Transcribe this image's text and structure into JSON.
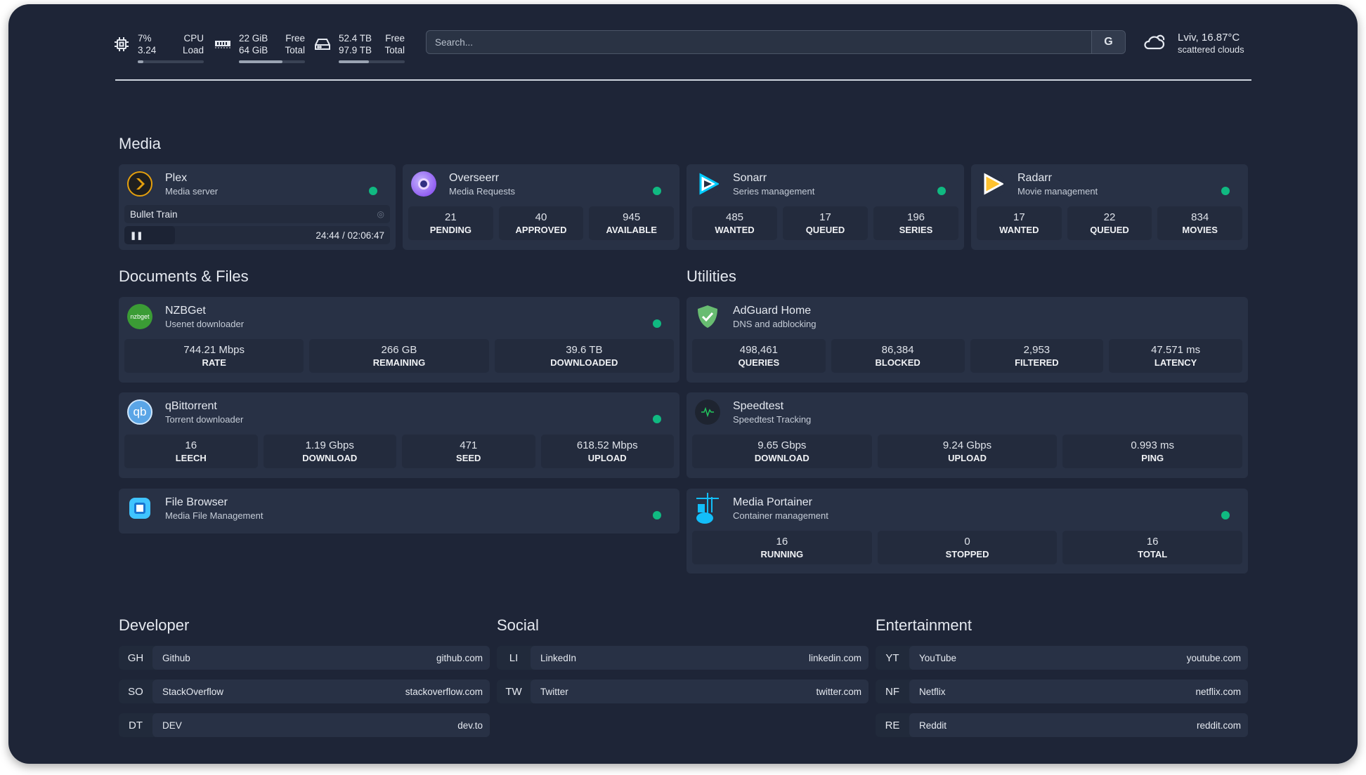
{
  "resources": {
    "cpu": {
      "icon": "cpu-icon",
      "value1": "7%",
      "label1": "CPU",
      "value2": "3.24",
      "label2": "Load",
      "usage_percent": 7
    },
    "memory": {
      "icon": "memory-icon",
      "value1": "22 GiB",
      "label1": "Free",
      "value2": "64 GiB",
      "label2": "Total",
      "usage_percent": 66
    },
    "disk": {
      "icon": "disk-icon",
      "value1": "52.4 TB",
      "label1": "Free",
      "value2": "97.9 TB",
      "label2": "Total",
      "usage_percent": 46
    }
  },
  "search": {
    "placeholder": "Search...",
    "provider_button": "G"
  },
  "weather": {
    "icon": "cloud-icon",
    "location_temp": "Lviv, 16.87°C",
    "condition": "scattered clouds"
  },
  "status_color": "#10b981",
  "sections": {
    "media": "Media",
    "documents": "Documents & Files",
    "utilities": "Utilities",
    "developer": "Developer",
    "social": "Social",
    "entertainment": "Entertainment"
  },
  "media": {
    "plex": {
      "name": "Plex",
      "desc": "Media server",
      "now_playing": "Bullet Train",
      "time": "24:44 / 02:06:47",
      "progress_percent": 19
    },
    "overseerr": {
      "name": "Overseerr",
      "desc": "Media Requests",
      "stats": [
        {
          "v": "21",
          "l": "PENDING"
        },
        {
          "v": "40",
          "l": "APPROVED"
        },
        {
          "v": "945",
          "l": "AVAILABLE"
        }
      ]
    },
    "sonarr": {
      "name": "Sonarr",
      "desc": "Series management",
      "stats": [
        {
          "v": "485",
          "l": "WANTED"
        },
        {
          "v": "17",
          "l": "QUEUED"
        },
        {
          "v": "196",
          "l": "SERIES"
        }
      ]
    },
    "radarr": {
      "name": "Radarr",
      "desc": "Movie management",
      "stats": [
        {
          "v": "17",
          "l": "WANTED"
        },
        {
          "v": "22",
          "l": "QUEUED"
        },
        {
          "v": "834",
          "l": "MOVIES"
        }
      ]
    }
  },
  "documents": {
    "nzbget": {
      "name": "NZBGet",
      "desc": "Usenet downloader",
      "logo_text": "nzbget",
      "stats": [
        {
          "v": "744.21 Mbps",
          "l": "RATE"
        },
        {
          "v": "266 GB",
          "l": "REMAINING"
        },
        {
          "v": "39.6 TB",
          "l": "DOWNLOADED"
        }
      ]
    },
    "qbittorrent": {
      "name": "qBittorrent",
      "desc": "Torrent downloader",
      "logo_text": "qb",
      "stats": [
        {
          "v": "16",
          "l": "LEECH"
        },
        {
          "v": "1.19 Gbps",
          "l": "DOWNLOAD"
        },
        {
          "v": "471",
          "l": "SEED"
        },
        {
          "v": "618.52 Mbps",
          "l": "UPLOAD"
        }
      ]
    },
    "filebrowser": {
      "name": "File Browser",
      "desc": "Media File Management"
    }
  },
  "utilities": {
    "adguard": {
      "name": "AdGuard Home",
      "desc": "DNS and adblocking",
      "stats": [
        {
          "v": "498,461",
          "l": "QUERIES"
        },
        {
          "v": "86,384",
          "l": "BLOCKED"
        },
        {
          "v": "2,953",
          "l": "FILTERED"
        },
        {
          "v": "47.571 ms",
          "l": "LATENCY"
        }
      ]
    },
    "speedtest": {
      "name": "Speedtest",
      "desc": "Speedtest Tracking",
      "stats": [
        {
          "v": "9.65 Gbps",
          "l": "DOWNLOAD"
        },
        {
          "v": "9.24 Gbps",
          "l": "UPLOAD"
        },
        {
          "v": "0.993 ms",
          "l": "PING"
        }
      ]
    },
    "portainer": {
      "name": "Media Portainer",
      "desc": "Container management",
      "stats": [
        {
          "v": "16",
          "l": "RUNNING"
        },
        {
          "v": "0",
          "l": "STOPPED"
        },
        {
          "v": "16",
          "l": "TOTAL"
        }
      ]
    }
  },
  "bookmarks": {
    "developer": [
      {
        "abbr": "GH",
        "name": "Github",
        "url": "github.com"
      },
      {
        "abbr": "SO",
        "name": "StackOverflow",
        "url": "stackoverflow.com"
      },
      {
        "abbr": "DT",
        "name": "DEV",
        "url": "dev.to"
      }
    ],
    "social": [
      {
        "abbr": "LI",
        "name": "LinkedIn",
        "url": "linkedin.com"
      },
      {
        "abbr": "TW",
        "name": "Twitter",
        "url": "twitter.com"
      }
    ],
    "entertainment": [
      {
        "abbr": "YT",
        "name": "YouTube",
        "url": "youtube.com"
      },
      {
        "abbr": "NF",
        "name": "Netflix",
        "url": "netflix.com"
      },
      {
        "abbr": "RE",
        "name": "Reddit",
        "url": "reddit.com"
      }
    ]
  }
}
